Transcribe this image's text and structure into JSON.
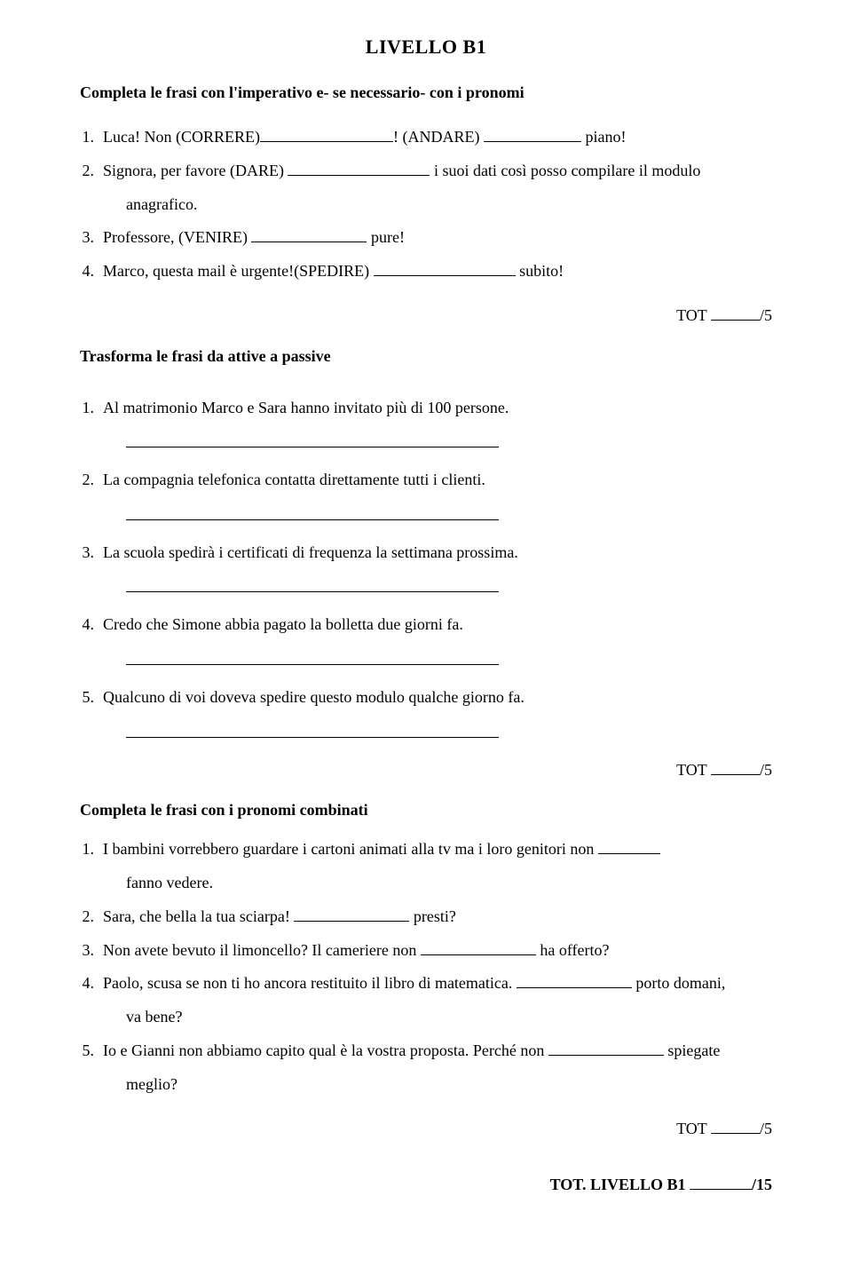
{
  "title": "LIVELLO B1",
  "section1": {
    "heading": "Completa le frasi con l'imperativo e- se necessario- con i pronomi",
    "items": {
      "n1": "1.",
      "t1a": "Luca! Non (CORRERE)",
      "t1b": "! (ANDARE)",
      "t1c": " piano!",
      "n2": "2.",
      "t2a": "Signora, per favore (DARE)",
      "t2b": " i suoi dati così posso compilare il modulo",
      "t2c": "anagrafico.",
      "n3": "3.",
      "t3a": "Professore, (VENIRE)",
      "t3b": " pure!",
      "n4": "4.",
      "t4a": "Marco, questa mail è urgente!(SPEDIRE)",
      "t4b": " subito!"
    },
    "tot": "TOT ",
    "tot_suffix": "/5"
  },
  "section2": {
    "heading": "Trasforma le frasi da attive a passive",
    "items": {
      "n1": "1.",
      "t1": "Al matrimonio Marco e Sara hanno invitato più di 100 persone.",
      "n2": "2.",
      "t2": "La compagnia telefonica contatta direttamente tutti i clienti.",
      "n3": "3.",
      "t3": "La scuola spedirà i certificati di frequenza la settimana prossima.",
      "n4": "4.",
      "t4": "Credo che Simone abbia pagato la bolletta due giorni fa.",
      "n5": "5.",
      "t5": "Qualcuno di voi doveva spedire questo modulo qualche giorno fa."
    },
    "tot": "TOT ",
    "tot_suffix": "/5"
  },
  "section3": {
    "heading": "Completa le frasi con i pronomi combinati",
    "items": {
      "n1": "1.",
      "t1a": "I bambini vorrebbero guardare i cartoni animati alla tv ma i loro genitori non ",
      "t1b": "fanno vedere.",
      "n2": "2.",
      "t2a": "Sara, che bella la tua sciarpa!",
      "t2b": " presti?",
      "n3": "3.",
      "t3a": "Non avete bevuto il limoncello? Il cameriere non",
      "t3b": " ha offerto?",
      "n4": "4.",
      "t4a": "Paolo, scusa se non ti ho ancora restituito il libro di matematica.",
      "t4b": " porto domani,",
      "t4c": "va bene?",
      "n5": "5.",
      "t5a": "Io e Gianni non abbiamo capito qual è la vostra proposta. Perché non",
      "t5b": " spiegate",
      "t5c": "meglio?"
    },
    "tot": "TOT ",
    "tot_suffix": "/5"
  },
  "footer": {
    "label": "TOT. LIVELLO B1 ",
    "suffix": "/15"
  }
}
